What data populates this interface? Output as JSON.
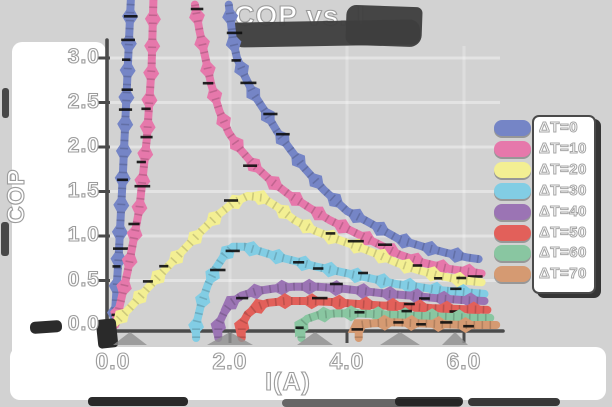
{
  "chart_data": {
    "type": "line",
    "title": "COP vs. I",
    "xlabel": "I(A)",
    "ylabel": "COP",
    "xlim": [
      0,
      6.8
    ],
    "ylim": [
      0,
      3.0
    ],
    "grid": true,
    "legend_position": "right",
    "marker": "diamond",
    "x_ticks": [
      {
        "value": 0,
        "label": "0.0"
      },
      {
        "value": 2,
        "label": "2.0"
      },
      {
        "value": 4,
        "label": "4.0"
      },
      {
        "value": 6,
        "label": "6.0"
      }
    ],
    "y_ticks": [
      {
        "value": 0.0,
        "label": "0.0"
      },
      {
        "value": 0.5,
        "label": "0.5"
      },
      {
        "value": 1.0,
        "label": "1.0"
      },
      {
        "value": 1.5,
        "label": "1.5"
      },
      {
        "value": 2.0,
        "label": "2.0"
      },
      {
        "value": 2.5,
        "label": "2.5"
      },
      {
        "value": 3.0,
        "label": "3.0"
      }
    ],
    "series": [
      {
        "name": "ΔT=0",
        "color": "#7585c6",
        "segments": [
          [
            [
              0.02,
              0.0
            ],
            [
              0.1,
              0.8
            ],
            [
              0.17,
              1.7
            ],
            [
              0.24,
              2.7
            ],
            [
              0.3,
              3.6
            ],
            [
              0.32,
              3.85
            ]
          ],
          [
            [
              1.98,
              3.6
            ],
            [
              2.05,
              3.2
            ],
            [
              2.12,
              3.0
            ],
            [
              2.25,
              2.8
            ],
            [
              2.4,
              2.6
            ],
            [
              2.6,
              2.4
            ],
            [
              2.8,
              2.18
            ],
            [
              3.0,
              2.0
            ],
            [
              3.25,
              1.78
            ],
            [
              3.6,
              1.52
            ],
            [
              4.0,
              1.28
            ],
            [
              4.3,
              1.18
            ],
            [
              4.6,
              1.07
            ],
            [
              4.9,
              0.96
            ],
            [
              5.3,
              0.88
            ],
            [
              5.7,
              0.81
            ],
            [
              6.05,
              0.76
            ],
            [
              6.25,
              0.74
            ]
          ]
        ]
      },
      {
        "name": "ΔT=10",
        "color": "#e678ab",
        "segments": [
          [
            [
              0.04,
              0.0
            ],
            [
              0.25,
              0.6
            ],
            [
              0.45,
              1.3
            ],
            [
              0.58,
              2.1
            ],
            [
              0.66,
              2.9
            ],
            [
              0.7,
              3.85
            ]
          ],
          [
            [
              1.4,
              3.6
            ],
            [
              1.48,
              3.3
            ],
            [
              1.58,
              3.0
            ],
            [
              1.68,
              2.7
            ],
            [
              1.82,
              2.4
            ],
            [
              1.98,
              2.16
            ],
            [
              2.18,
              1.97
            ],
            [
              2.42,
              1.79
            ],
            [
              2.7,
              1.62
            ],
            [
              3.0,
              1.47
            ],
            [
              3.35,
              1.32
            ],
            [
              3.7,
              1.18
            ],
            [
              4.1,
              1.05
            ],
            [
              4.5,
              0.92
            ],
            [
              4.9,
              0.79
            ],
            [
              5.3,
              0.7
            ],
            [
              5.75,
              0.63
            ],
            [
              6.3,
              0.58
            ]
          ]
        ]
      },
      {
        "name": "ΔT=20",
        "color": "#f3ef93",
        "segments": [
          [
            [
              0.0,
              0.0
            ],
            [
              0.3,
              0.2
            ],
            [
              0.6,
              0.42
            ],
            [
              0.9,
              0.63
            ],
            [
              1.2,
              0.84
            ],
            [
              1.5,
              1.05
            ],
            [
              1.8,
              1.24
            ],
            [
              2.05,
              1.37
            ],
            [
              2.3,
              1.45
            ],
            [
              2.55,
              1.43
            ],
            [
              2.8,
              1.33
            ],
            [
              3.1,
              1.18
            ],
            [
              3.45,
              1.06
            ],
            [
              3.8,
              0.97
            ],
            [
              4.15,
              0.89
            ],
            [
              4.5,
              0.8
            ],
            [
              4.85,
              0.7
            ],
            [
              5.2,
              0.62
            ],
            [
              5.6,
              0.55
            ],
            [
              6.0,
              0.5
            ],
            [
              6.3,
              0.48
            ]
          ]
        ]
      },
      {
        "name": "ΔT=30",
        "color": "#82cde4",
        "segments": [
          [
            [
              1.42,
              0.0
            ],
            [
              1.5,
              0.22
            ],
            [
              1.62,
              0.45
            ],
            [
              1.75,
              0.63
            ],
            [
              1.9,
              0.78
            ],
            [
              2.05,
              0.88
            ],
            [
              2.25,
              0.88
            ],
            [
              2.5,
              0.83
            ],
            [
              2.8,
              0.77
            ],
            [
              3.1,
              0.72
            ],
            [
              3.45,
              0.66
            ],
            [
              3.8,
              0.61
            ],
            [
              4.15,
              0.56
            ],
            [
              4.5,
              0.51
            ],
            [
              4.85,
              0.46
            ],
            [
              5.2,
              0.43
            ],
            [
              5.6,
              0.39
            ],
            [
              6.0,
              0.37
            ],
            [
              6.35,
              0.35
            ]
          ]
        ]
      },
      {
        "name": "ΔT=40",
        "color": "#9b74b4",
        "segments": [
          [
            [
              1.8,
              0.0
            ],
            [
              1.9,
              0.14
            ],
            [
              2.02,
              0.25
            ],
            [
              2.2,
              0.33
            ],
            [
              2.45,
              0.38
            ],
            [
              2.75,
              0.41
            ],
            [
              3.1,
              0.43
            ],
            [
              3.5,
              0.43
            ],
            [
              3.9,
              0.41
            ],
            [
              4.3,
              0.38
            ],
            [
              4.7,
              0.35
            ],
            [
              5.1,
              0.33
            ],
            [
              5.55,
              0.3
            ],
            [
              6.0,
              0.28
            ],
            [
              6.35,
              0.27
            ]
          ]
        ]
      },
      {
        "name": "ΔT=50",
        "color": "#e2605a",
        "segments": [
          [
            [
              2.2,
              0.0
            ],
            [
              2.3,
              0.12
            ],
            [
              2.45,
              0.2
            ],
            [
              2.65,
              0.25
            ],
            [
              2.95,
              0.27
            ],
            [
              3.3,
              0.27
            ],
            [
              3.7,
              0.26
            ],
            [
              4.1,
              0.24
            ],
            [
              4.55,
              0.22
            ],
            [
              5.0,
              0.21
            ],
            [
              5.45,
              0.19
            ],
            [
              5.9,
              0.18
            ],
            [
              6.4,
              0.17
            ]
          ]
        ]
      },
      {
        "name": "ΔT=60",
        "color": "#89c6a1",
        "segments": [
          [
            [
              3.22,
              0.0
            ],
            [
              3.32,
              0.07
            ],
            [
              3.5,
              0.11
            ],
            [
              3.8,
              0.13
            ],
            [
              4.15,
              0.13
            ],
            [
              4.55,
              0.12
            ],
            [
              4.95,
              0.11
            ],
            [
              5.35,
              0.1
            ],
            [
              5.8,
              0.09
            ],
            [
              6.2,
              0.08
            ],
            [
              6.45,
              0.08
            ]
          ]
        ]
      },
      {
        "name": "ΔT=70",
        "color": "#d59a72",
        "segments": [
          [
            [
              4.2,
              0.0
            ],
            [
              4.45,
              0.02
            ],
            [
              4.8,
              0.03
            ],
            [
              5.2,
              0.02
            ],
            [
              5.6,
              0.01
            ],
            [
              6.0,
              0.0
            ],
            [
              6.55,
              0.0
            ]
          ]
        ]
      }
    ]
  }
}
